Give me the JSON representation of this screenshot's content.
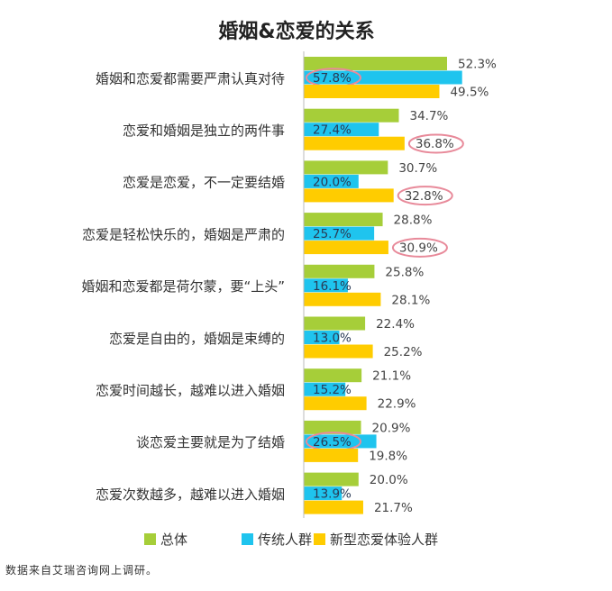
{
  "chart_data": {
    "type": "bar",
    "orientation": "horizontal",
    "title": "婚姻&恋爱的关系",
    "categories": [
      "婚姻和恋爱都需要严肃认真对待",
      "恋爱和婚姻是独立的两件事",
      "恋爱是恋爱，不一定要结婚",
      "恋爱是轻松快乐的，婚姻是严肃的",
      "婚姻和恋爱都是荷尔蒙，要“上头”",
      "恋爱是自由的，婚姻是束缚的",
      "恋爱时间越长，越难以进入婚姻",
      "谈恋爱主要就是为了结婚",
      "恋爱次数越多，越难以进入婚姻"
    ],
    "series": [
      {
        "name": "总体",
        "color": "#A6CE39",
        "values": [
          52.3,
          34.7,
          30.7,
          28.8,
          25.8,
          22.4,
          21.1,
          20.9,
          20.0
        ],
        "labels": [
          "52.3%",
          "34.7%",
          "30.7%",
          "28.8%",
          "25.8%",
          "22.4%",
          "21.1%",
          "20.9%",
          "20.0%"
        ]
      },
      {
        "name": "传统人群",
        "color": "#1FC4EE",
        "values": [
          57.8,
          27.4,
          20.0,
          25.7,
          16.1,
          13.0,
          15.2,
          26.5,
          13.9
        ],
        "labels": [
          "57.8%",
          "27.4%",
          "20.0%",
          "25.7%",
          "16.1%",
          "13.0%",
          "15.2%",
          "26.5%",
          "13.9%"
        ]
      },
      {
        "name": "新型恋爱体验人群",
        "color": "#FFCC00",
        "values": [
          49.5,
          36.8,
          32.8,
          30.9,
          28.1,
          25.2,
          22.9,
          19.8,
          21.7
        ],
        "labels": [
          "49.5%",
          "36.8%",
          "32.8%",
          "30.9%",
          "28.1%",
          "25.2%",
          "22.9%",
          "19.8%",
          "21.7%"
        ]
      }
    ],
    "highlights": [
      {
        "category": 0,
        "series": 1
      },
      {
        "category": 1,
        "series": 2
      },
      {
        "category": 2,
        "series": 2
      },
      {
        "category": 3,
        "series": 2
      },
      {
        "category": 7,
        "series": 1
      }
    ],
    "highlight_color": "#E88A9A",
    "xlim": [
      0,
      60
    ],
    "legend_position": "bottom",
    "grid": false
  },
  "source": "数据来自艾瑞咨询网上调研。"
}
